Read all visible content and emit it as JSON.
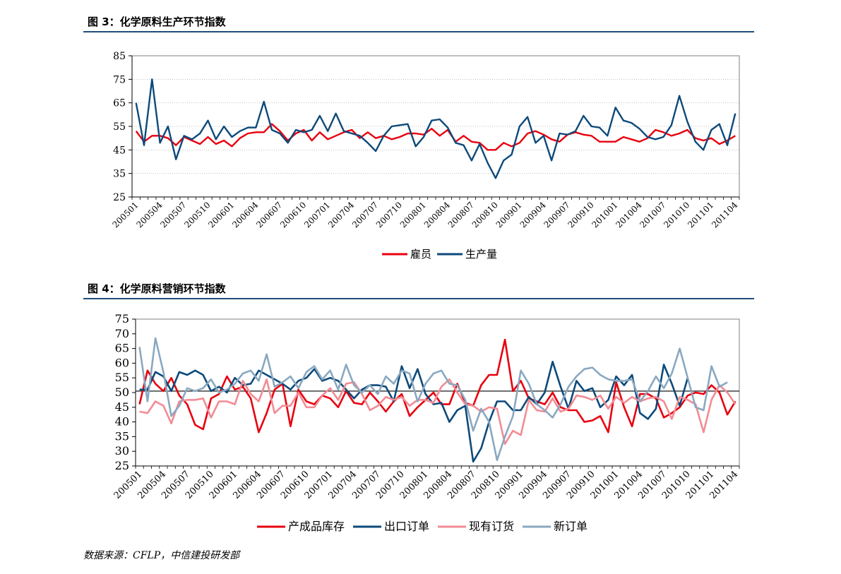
{
  "fig3_title": "图 3：化学原料生产环节指数",
  "fig4_title": "图 4：化学原料营销环节指数",
  "source": "数据来源：CFLP，中信建投研发部",
  "colors": {
    "red": "#e8000f",
    "navy": "#0d4a7a",
    "pink": "#f28b94",
    "grayblue": "#8aa8c0",
    "rule": "#1f4e79"
  },
  "chart_data": [
    {
      "type": "line",
      "title": "",
      "xlabel": "",
      "ylabel": "",
      "ylim": [
        25,
        85
      ],
      "yticks": [
        25,
        35,
        45,
        55,
        65,
        75,
        85
      ],
      "grid": "horizontal",
      "legend": "bottom",
      "xticks": [
        "200501",
        "200504",
        "200507",
        "200510",
        "200601",
        "200604",
        "200607",
        "200610",
        "200701",
        "200704",
        "200707",
        "200710",
        "200801",
        "200804",
        "200807",
        "200810",
        "200901",
        "200904",
        "200907",
        "200910",
        "201001",
        "201004",
        "201007",
        "201010",
        "201101",
        "201104"
      ],
      "series": [
        {
          "name": "雇员",
          "color": "#e8000f",
          "values": [
            53,
            48.5,
            51,
            51,
            50,
            47,
            50.5,
            49,
            47.5,
            50.5,
            47.5,
            49,
            46.5,
            50,
            52,
            52.5,
            52.5,
            56,
            53,
            49,
            52,
            53.5,
            49,
            52.5,
            49.5,
            51,
            52.5,
            53.5,
            50,
            52.5,
            50,
            51,
            49.5,
            50.5,
            52,
            52,
            51.5,
            54,
            51,
            53.5,
            48.5,
            51,
            48.5,
            48,
            45,
            45,
            48,
            46.5,
            48,
            52,
            53,
            51.5,
            49.5,
            48.5,
            51.5,
            52.5,
            51.5,
            51,
            48.5,
            48.5,
            48.5,
            50.5,
            49.5,
            48.5,
            50,
            53.5,
            52.5,
            51,
            52,
            53.5,
            50,
            49,
            50,
            47.5,
            49,
            51
          ]
        },
        {
          "name": "生产量",
          "color": "#0d4a7a",
          "values": [
            65,
            47,
            75,
            48,
            55,
            41,
            51,
            49.5,
            52,
            57.5,
            49.5,
            55,
            50.5,
            53,
            54.5,
            54.5,
            65.5,
            53.5,
            52,
            48,
            53.5,
            52.5,
            53.5,
            59.5,
            53,
            60.5,
            53,
            52,
            51,
            48,
            44.5,
            51,
            55,
            55.5,
            56,
            46.5,
            50.5,
            57.5,
            58,
            54.5,
            48,
            47,
            40.5,
            47.5,
            39.5,
            33,
            40.5,
            43,
            55,
            59,
            48,
            51,
            40.5,
            52,
            51.5,
            53,
            59.5,
            55,
            54.5,
            51,
            63,
            57.5,
            56.5,
            54,
            50.5,
            49.5,
            50.5,
            55.5,
            68,
            57,
            48.5,
            45,
            53.5,
            56,
            47,
            60.5
          ]
        }
      ]
    },
    {
      "type": "line",
      "title": "",
      "xlabel": "",
      "ylabel": "",
      "ylim": [
        25,
        75
      ],
      "yticks": [
        25,
        30,
        35,
        40,
        45,
        50,
        55,
        60,
        65,
        70,
        75
      ],
      "reference_line": 50.5,
      "grid": "none",
      "legend": "bottom",
      "xticks": [
        "200501",
        "200504",
        "200507",
        "200510",
        "200601",
        "200604",
        "200607",
        "200610",
        "200701",
        "200704",
        "200707",
        "200710",
        "200801",
        "200804",
        "200807",
        "200810",
        "200901",
        "200904",
        "200907",
        "200910",
        "201001",
        "201004",
        "201007",
        "201010",
        "201101",
        "201104"
      ],
      "series": [
        {
          "name": "产成品库存",
          "color": "#e8000f",
          "values": [
            46,
            57.5,
            53,
            50.5,
            55,
            49,
            46,
            39,
            37.5,
            48,
            49.5,
            55.5,
            51,
            52,
            48,
            36.5,
            43,
            51,
            53,
            38.5,
            51,
            47,
            46,
            49,
            48,
            45,
            50.5,
            46.5,
            46,
            50,
            47,
            43.5,
            47,
            49.5,
            42,
            45,
            47.5,
            50,
            46,
            46,
            53,
            46.5,
            45.5,
            52.5,
            56,
            56,
            68,
            50.5,
            54,
            48,
            47,
            46,
            50,
            45,
            44,
            44,
            40,
            40.5,
            42,
            36.5,
            53.5,
            45,
            38.5,
            49.5,
            49.5,
            48,
            41.5,
            43,
            45,
            49,
            50,
            49.5,
            52.5,
            50,
            42.5,
            47
          ]
        },
        {
          "name": "出口订单",
          "color": "#0d4a7a",
          "values": [
            51,
            51,
            57,
            55.5,
            50.5,
            57,
            56,
            57.5,
            56,
            50.5,
            52,
            50,
            55,
            52.5,
            53,
            57.5,
            56,
            54.5,
            53,
            51,
            54,
            55,
            58,
            54,
            55,
            54,
            51,
            48,
            51,
            52.5,
            52.5,
            52,
            47,
            59,
            51.5,
            58,
            49.5,
            46,
            46.5,
            40,
            44,
            45.5,
            26.5,
            31,
            40,
            47,
            47,
            44,
            44,
            48.5,
            46,
            50,
            60.5,
            52,
            44.5,
            54,
            50.5,
            51.5,
            45,
            47.5,
            55.5,
            52.5,
            56,
            43,
            41,
            44.5,
            59.5,
            53,
            45.5,
            55
          ]
        },
        {
          "name": "现有订货",
          "color": "#f28b94",
          "values": [
            43.5,
            43,
            47,
            45.5,
            39.5,
            47,
            47.5,
            47.5,
            48,
            41.5,
            47,
            47,
            46,
            54,
            49.5,
            47,
            54.5,
            43,
            45.5,
            45.5,
            50,
            45,
            45,
            49,
            51.5,
            47.5,
            53,
            53.5,
            49.5,
            44,
            45.5,
            48.5,
            47.5,
            48.5,
            45.5,
            47.5,
            47.5,
            46.5,
            52,
            54.5,
            50,
            46,
            45.5,
            43.5,
            45,
            44.5,
            32.5,
            37,
            35.5,
            47.5,
            44,
            43.5,
            48,
            43.5,
            44.5,
            49,
            48.5,
            47.5,
            49,
            44.5,
            48.5,
            46.5,
            48.5,
            47,
            48,
            48.5,
            47,
            41,
            48.5,
            47.5,
            46,
            36.5,
            47.5,
            52.5,
            50,
            46
          ]
        },
        {
          "name": "新订单",
          "color": "#8aa8c0",
          "values": [
            65.5,
            47,
            68.5,
            57,
            42,
            45.5,
            51.5,
            50.5,
            51.5,
            54.5,
            50,
            51,
            53,
            56.5,
            57.5,
            54,
            63,
            52,
            53.5,
            55.5,
            51.5,
            57,
            59,
            54.5,
            57.5,
            51,
            59.5,
            52.5,
            50,
            52.5,
            49.5,
            55.5,
            53,
            57.5,
            56.5,
            47,
            53,
            56.5,
            57.5,
            53,
            52.5,
            47.5,
            37,
            44.5,
            40,
            27,
            35,
            42,
            57.5,
            53,
            46,
            44,
            41.5,
            46,
            52,
            55.5,
            58,
            58.5,
            56,
            54.5,
            54,
            54,
            54.5,
            47,
            50.5,
            55.5,
            51.5,
            56.5,
            65,
            55,
            45,
            44,
            59,
            52,
            53.5
          ]
        }
      ]
    }
  ]
}
